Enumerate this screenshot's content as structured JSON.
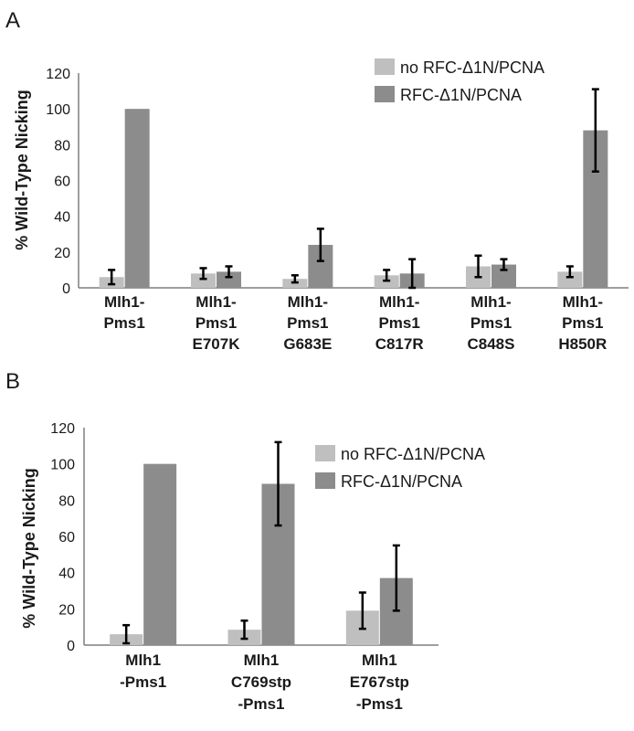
{
  "colors": {
    "series_light": "#bfbfbf",
    "series_dark": "#8c8c8c",
    "axis": "#7f7f7f",
    "error_bar": "#000000"
  },
  "chart_data": [
    {
      "panel": "A",
      "type": "bar",
      "ylabel": "% Wild-Type Nicking",
      "ylim": [
        0,
        120
      ],
      "yticks": [
        0,
        20,
        40,
        60,
        80,
        100,
        120
      ],
      "grid": false,
      "legend_position": "top-right",
      "categories": [
        [
          "Mlh1-",
          "Pms1"
        ],
        [
          "Mlh1-",
          "Pms1",
          "E707K"
        ],
        [
          "Mlh1-",
          "Pms1",
          "G683E"
        ],
        [
          "Mlh1-",
          "Pms1",
          "C817R"
        ],
        [
          "Mlh1-",
          "Pms1",
          "C848S"
        ],
        [
          "Mlh1-",
          "Pms1",
          "H850R"
        ]
      ],
      "series": [
        {
          "name": "no RFC-Δ1N/PCNA",
          "color": "#bfbfbf",
          "values": [
            6,
            8,
            5,
            7,
            12,
            9
          ],
          "errors": [
            4,
            3,
            2,
            3,
            6,
            3
          ]
        },
        {
          "name": "RFC-Δ1N/PCNA",
          "color": "#8c8c8c",
          "values": [
            100,
            9,
            24,
            8,
            13,
            88
          ],
          "errors": [
            0,
            3,
            9,
            8,
            3,
            23
          ]
        }
      ]
    },
    {
      "panel": "B",
      "type": "bar",
      "ylabel": "% Wild-Type Nicking",
      "ylim": [
        0,
        120
      ],
      "yticks": [
        0,
        20,
        40,
        60,
        80,
        100,
        120
      ],
      "grid": false,
      "legend_position": "right",
      "categories": [
        [
          "Mlh1",
          "-Pms1"
        ],
        [
          "Mlh1",
          "C769stp",
          "-Pms1"
        ],
        [
          "Mlh1",
          "E767stp",
          "-Pms1"
        ]
      ],
      "series": [
        {
          "name": "no RFC-Δ1N/PCNA",
          "color": "#bfbfbf",
          "values": [
            6,
            8.5,
            19
          ],
          "errors": [
            5,
            5,
            10
          ]
        },
        {
          "name": "RFC-Δ1N/PCNA",
          "color": "#8c8c8c",
          "values": [
            100,
            89,
            37
          ],
          "errors": [
            0,
            23,
            18
          ]
        }
      ]
    }
  ]
}
